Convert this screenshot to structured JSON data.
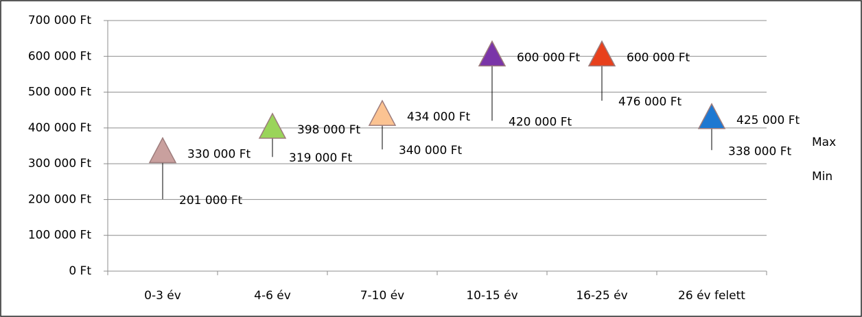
{
  "chart_data": {
    "type": "high-low",
    "categories": [
      "0-3 év",
      "4-6 év",
      "7-10 év",
      "10-15 év",
      "16-25 év",
      "26 év felett"
    ],
    "series": [
      {
        "name": "Max",
        "values": [
          330000,
          398000,
          434000,
          600000,
          600000,
          425000
        ],
        "value_labels": [
          "330 000 Ft",
          "398 000 Ft",
          "434 000 Ft",
          "600 000 Ft",
          "600 000 Ft",
          "425 000 Ft"
        ],
        "colors": [
          "#c9a09e",
          "#9ad45a",
          "#fbc392",
          "#7a35a8",
          "#e8401c",
          "#1f78d1"
        ]
      },
      {
        "name": "Min",
        "color": "#000000",
        "values": [
          201000,
          319000,
          340000,
          420000,
          476000,
          338000
        ],
        "value_labels": [
          "201 000 Ft",
          "319 000 Ft",
          "340 000 Ft",
          "420 000 Ft",
          "476 000 Ft",
          "338 000 Ft"
        ]
      }
    ],
    "ylim": [
      0,
      700000
    ],
    "yticks": [
      {
        "value": 0,
        "label": "0 Ft"
      },
      {
        "value": 100000,
        "label": "100 000 Ft"
      },
      {
        "value": 200000,
        "label": "200 000 Ft"
      },
      {
        "value": 300000,
        "label": "300 000 Ft"
      },
      {
        "value": 400000,
        "label": "400 000 Ft"
      },
      {
        "value": 500000,
        "label": "500 000 Ft"
      },
      {
        "value": 600000,
        "label": "600 000 Ft"
      },
      {
        "value": 700000,
        "label": "700 000 Ft"
      }
    ],
    "grid": true,
    "legend": "right"
  }
}
